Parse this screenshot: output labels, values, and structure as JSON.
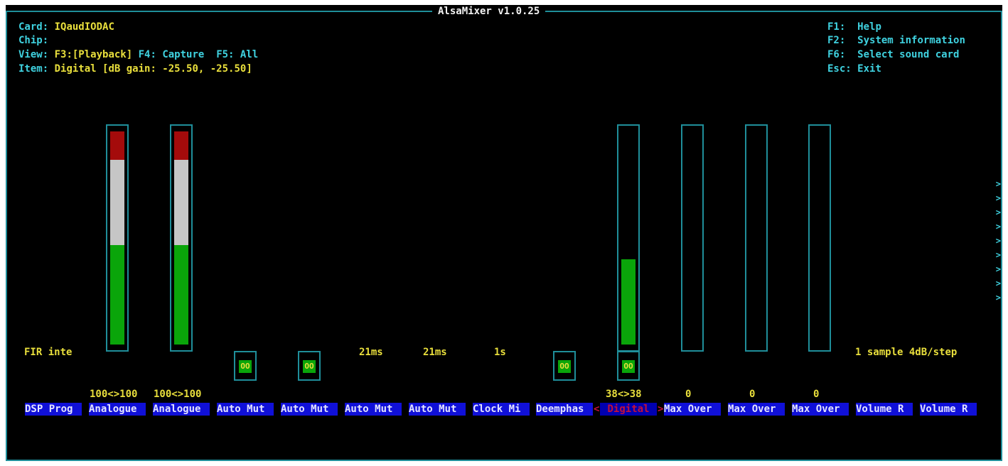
{
  "window": {
    "title": "AlsaMixer v1.0.25"
  },
  "header": {
    "card_label": "Card:",
    "card_value": "IQaudIODAC",
    "chip_label": "Chip:",
    "chip_value": "",
    "view_label": "View:",
    "view_playback": "F3:[Playback]",
    "view_capture": "F4: Capture",
    "view_all": "F5: All",
    "item_label": "Item:",
    "item_value": "Digital [dB gain: -25.50, -25.50]"
  },
  "help": [
    {
      "key": "F1:",
      "text": "Help"
    },
    {
      "key": "F2:",
      "text": "System information"
    },
    {
      "key": "F6:",
      "text": "Select sound card"
    },
    {
      "key": "Esc:",
      "text": "Exit"
    }
  ],
  "controls": [
    {
      "label": "DSP Prog",
      "top_text": "FIR inte"
    },
    {
      "label": "Analogue",
      "value_text": "100<>100",
      "level_percent": 100
    },
    {
      "label": "Analogue",
      "value_text": "100<>100",
      "level_percent": 100
    },
    {
      "label": "Auto Mut",
      "switch": "OO"
    },
    {
      "label": "Auto Mut",
      "switch": "OO"
    },
    {
      "label": "Auto Mut",
      "top_text": "21ms"
    },
    {
      "label": "Auto Mut",
      "top_text": "21ms"
    },
    {
      "label": "Clock Mi",
      "top_text": "1s"
    },
    {
      "label": "Deemphas",
      "switch": "OO"
    },
    {
      "label": "Digital",
      "value_text": "38<>38",
      "switch": "OO",
      "level_percent": 40,
      "selected": true
    },
    {
      "label": "Max Over",
      "value_text": "0",
      "level_percent": 0
    },
    {
      "label": "Max Over",
      "value_text": "0",
      "level_percent": 0
    },
    {
      "label": "Max Over",
      "value_text": "0",
      "level_percent": 0
    },
    {
      "label": "Volume R",
      "top_text": "1 sample"
    },
    {
      "label": "Volume R",
      "top_text": "4dB/step"
    }
  ],
  "scroll_indicator": ">",
  "colors": {
    "frame": "#1f8e9a",
    "header_text": "#3fd2e0",
    "value_text": "#e9df3c",
    "label_bg": "#1010d8",
    "selected_text": "#c4103a",
    "bar_green": "#0aa50a",
    "bar_white": "#c6c6c6",
    "bar_red": "#a40b0b"
  }
}
